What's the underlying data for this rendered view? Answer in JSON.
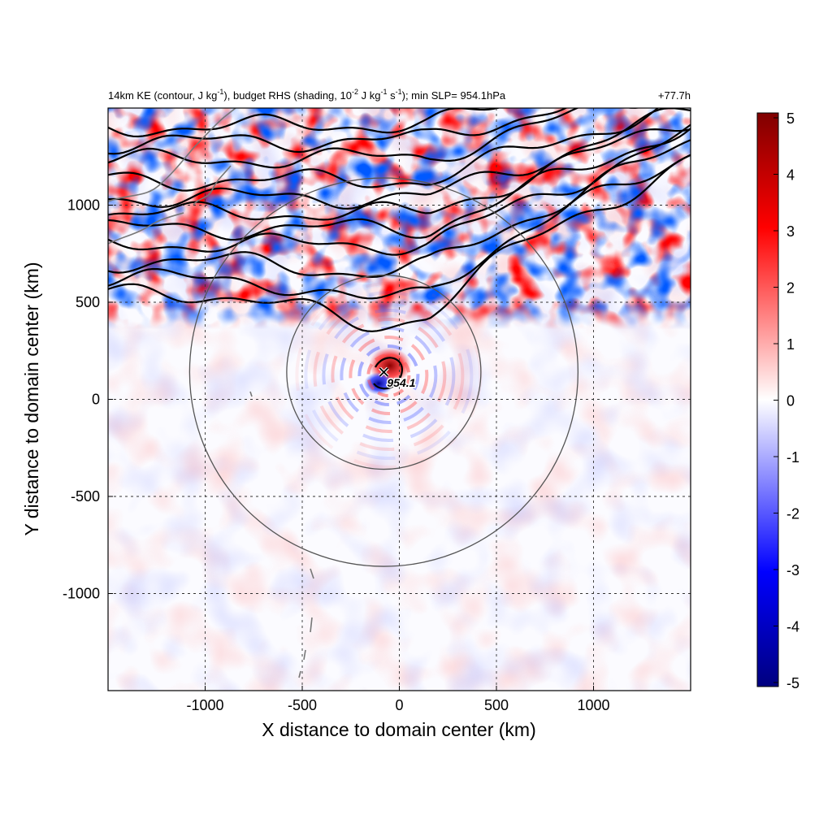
{
  "chart_data": {
    "type": "heatmap",
    "title": {
      "part1": "14km KE (contour, J kg",
      "sup1": "-1",
      "part2": "), budget RHS (shading, 10",
      "sup2": "-2",
      "part3": " J kg",
      "sup3": "-1",
      "part4": " s",
      "sup4": "-1",
      "part5": "); min SLP= 954.1hPa"
    },
    "forecast_time": "+77.7h",
    "xlabel": "X distance to domain center (km)",
    "ylabel": "Y distance to domain center (km)",
    "xlim": [
      -1500,
      1500
    ],
    "ylim": [
      -1500,
      1500
    ],
    "xticks": [
      -1000,
      -500,
      0,
      500,
      1000
    ],
    "yticks": [
      -1000,
      -500,
      0,
      500,
      1000
    ],
    "grid": true,
    "colorbar": {
      "min": -5,
      "max": 5,
      "ticks": [
        "5",
        "4",
        "3",
        "2",
        "1",
        "0",
        "-1",
        "-2",
        "-3",
        "-4",
        "-5"
      ],
      "colormap": "blue-white-red",
      "colors": {
        "neg_dark": "#00007f",
        "neg": "#0000ff",
        "zero": "#ffffff",
        "pos": "#ff0000",
        "pos_dark": "#7f0000"
      }
    },
    "storm_center": {
      "x": -80,
      "y": 140,
      "min_slp_label": "954.1",
      "marker": "x-marker"
    },
    "range_circles_km": [
      500,
      1000
    ],
    "ke_contours_y_km": [
      1400,
      1320,
      1230,
      1130,
      1040,
      960,
      880,
      800,
      710,
      620,
      540
    ]
  }
}
